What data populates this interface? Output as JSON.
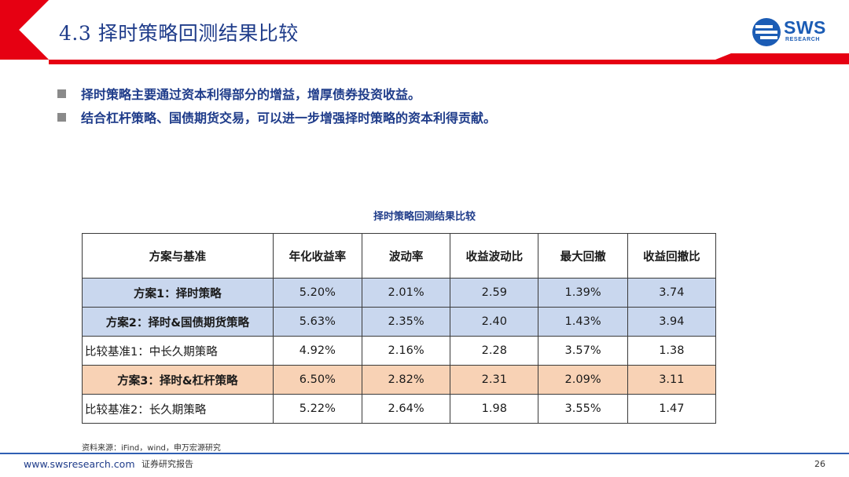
{
  "header": {
    "title": "4.3 择时策略回测结果比较",
    "logo_text": "SWS",
    "logo_subtext": "RESEARCH",
    "colors": {
      "red": "#e60012",
      "blue": "#1f3c8a"
    }
  },
  "bullets": [
    "择时策略主要通过资本利得部分的增益，增厚债券投资收益。",
    "结合杠杆策略、国债期货交易，可以进一步增强择时策略的资本利得贡献。"
  ],
  "table": {
    "caption": "择时策略回测结果比较",
    "headers": [
      "方案与基准",
      "年化收益率",
      "波动率",
      "收益波动比",
      "最大回撤",
      "收益回撤比"
    ],
    "rows": [
      [
        "方案1：择时策略",
        "5.20%",
        "2.01%",
        "2.59",
        "1.39%",
        "3.74"
      ],
      [
        "方案2：择时&国债期货策略",
        "5.63%",
        "2.35%",
        "2.40",
        "1.43%",
        "3.94"
      ],
      [
        "比较基准1：中长久期策略",
        "4.92%",
        "2.16%",
        "2.28",
        "3.57%",
        "1.38"
      ],
      [
        "方案3：择时&杠杆策略",
        "6.50%",
        "2.82%",
        "2.31",
        "2.09%",
        "3.11"
      ],
      [
        "比较基准2：长久期策略",
        "5.22%",
        "2.64%",
        "1.98",
        "3.55%",
        "1.47"
      ]
    ],
    "row_colors": [
      "#c9d7ee",
      "#c9d7ee",
      "#ffffff",
      "#f8d2b5",
      "#ffffff"
    ]
  },
  "source": "资料来源：iFind，wind，申万宏源研究",
  "footer": {
    "url": "www.swsresearch.com",
    "label": "证券研究报告",
    "page": "26"
  }
}
